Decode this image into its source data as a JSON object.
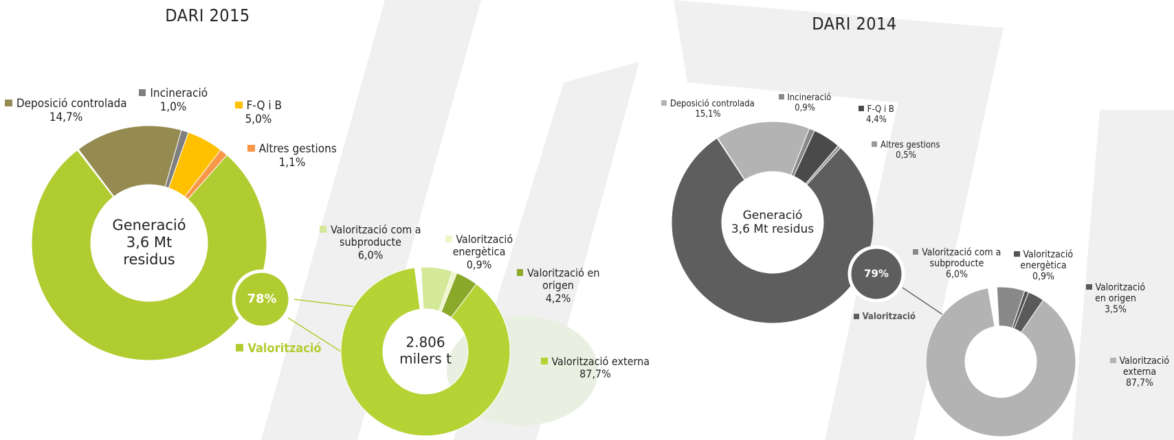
{
  "chart_data": [
    {
      "type": "donut",
      "title": "DARI 2015",
      "center_label": [
        "Generació",
        "3,6 Mt",
        "residus"
      ],
      "categories": [
        "Deposició controlada",
        "Incineració",
        "F-Q i B",
        "Altres gestions",
        "Valorització"
      ],
      "values": [
        14.7,
        1.0,
        5.0,
        1.1,
        78
      ],
      "value_labels": [
        "14,7%",
        "1,0%",
        "5,0%",
        "1,1%",
        "78%"
      ],
      "colors": [
        "#958a50",
        "#7f7f7f",
        "#ffc000",
        "#f79646",
        "#b0cc30"
      ]
    },
    {
      "type": "donut",
      "center_label": [
        "2.806",
        "milers t"
      ],
      "categories": [
        "Valorització com a subproducte",
        "Valorització energètica",
        "Valorització en origen",
        "Valorització externa"
      ],
      "values": [
        6.0,
        0.9,
        4.2,
        87.7
      ],
      "value_labels": [
        "6,0%",
        "0,9%",
        "4,2%",
        "87,7%"
      ],
      "colors": [
        "#d4e89a",
        "#eef5c8",
        "#8aa82a",
        "#b5d334"
      ]
    },
    {
      "type": "donut",
      "title": "DARI 2014",
      "center_label": [
        "Generació",
        "3,6 Mt residus"
      ],
      "categories": [
        "Deposició controlada",
        "Incineració",
        "F-Q i B",
        "Altres gestions",
        "Valorització"
      ],
      "values": [
        15.1,
        0.9,
        4.4,
        0.5,
        79
      ],
      "value_labels": [
        "15,1%",
        "0,9%",
        "4,4%",
        "0,5%",
        "79%"
      ],
      "colors": [
        "#b3b3b3",
        "#888888",
        "#4a4a4a",
        "#999999",
        "#5e5e5e"
      ]
    },
    {
      "type": "donut",
      "categories": [
        "Valorització com a subproducte",
        "Valorització energètica",
        "Valorització en origen",
        "Valorització externa"
      ],
      "values": [
        6.0,
        0.9,
        3.5,
        87.7
      ],
      "value_labels": [
        "6,0%",
        "0,9%",
        "3,5%",
        "87,7%"
      ],
      "colors": [
        "#888888",
        "#555555",
        "#5a5a5a",
        "#b3b3b3"
      ]
    }
  ]
}
